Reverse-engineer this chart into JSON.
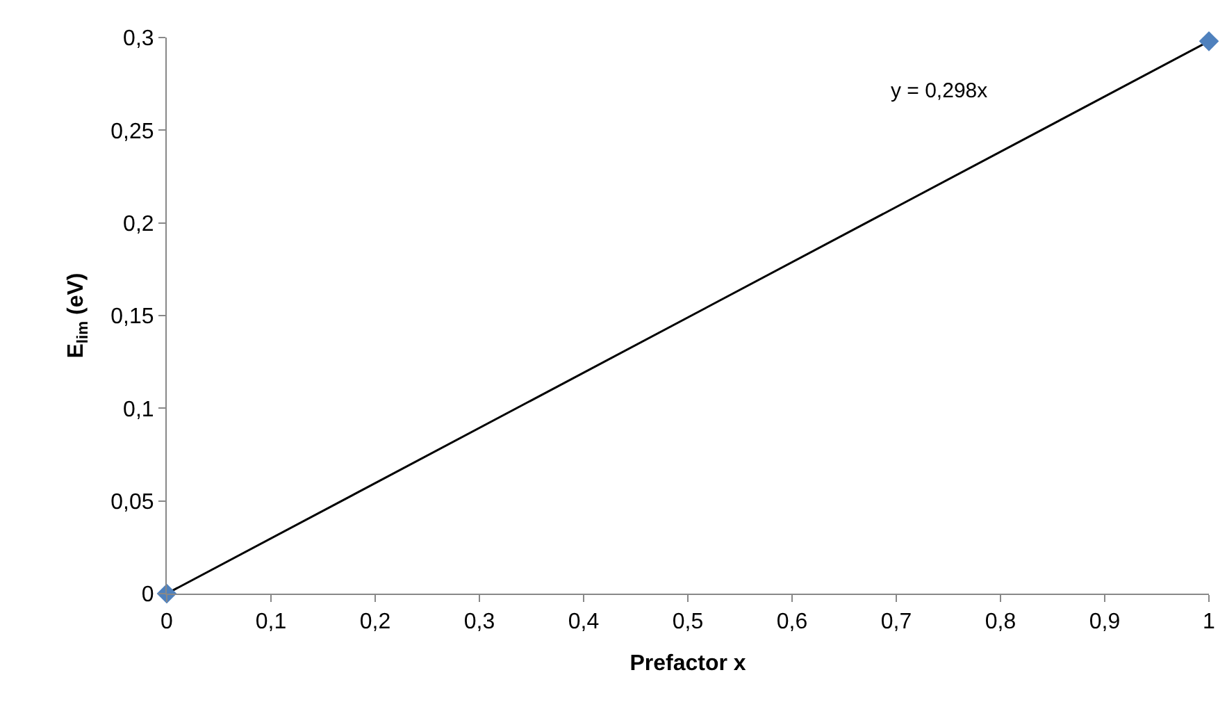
{
  "chart_data": {
    "type": "scatter",
    "xlabel": "Prefactor x",
    "ylabel": "E$_{lim}$ (eV)",
    "marker": "diamond",
    "series": [
      {
        "type": "line",
        "color": "#000000",
        "values": [
          0,
          0.298
        ],
        "marker": "none"
      },
      {
        "color": "#4f81bd",
        "values": [
          0,
          0.298
        ]
      }
    ],
    "annotations": [
      "y = 0,298x"
    ],
    "x": [
      0,
      1
    ],
    "xlim": [
      0,
      1
    ],
    "xticks": [
      0,
      {
        "value": 0.1,
        "label": "0,1"
      },
      {
        "value": 0.2,
        "label": "0,2"
      },
      {
        "value": 0.3,
        "label": "0,3"
      },
      {
        "value": 0.4,
        "label": "0,4"
      },
      {
        "value": 0.5,
        "label": "0,5"
      },
      {
        "value": 0.6,
        "label": "0,6"
      },
      {
        "value": 0.7,
        "label": "0,7"
      },
      {
        "value": 0.8,
        "label": "0,8"
      },
      {
        "value": 0.9,
        "label": "0,9"
      },
      1
    ],
    "ylim": [
      0,
      0.3
    ],
    "yticks": [
      0,
      {
        "value": 0.05,
        "label": "0,05"
      },
      {
        "value": 0.1,
        "label": "0,1"
      },
      {
        "value": 0.15,
        "label": "0,15"
      },
      {
        "value": 0.2,
        "label": "0,2"
      },
      {
        "value": 0.25,
        "label": "0,25"
      },
      {
        "value": 0.3,
        "label": "0,3"
      }
    ]
  }
}
